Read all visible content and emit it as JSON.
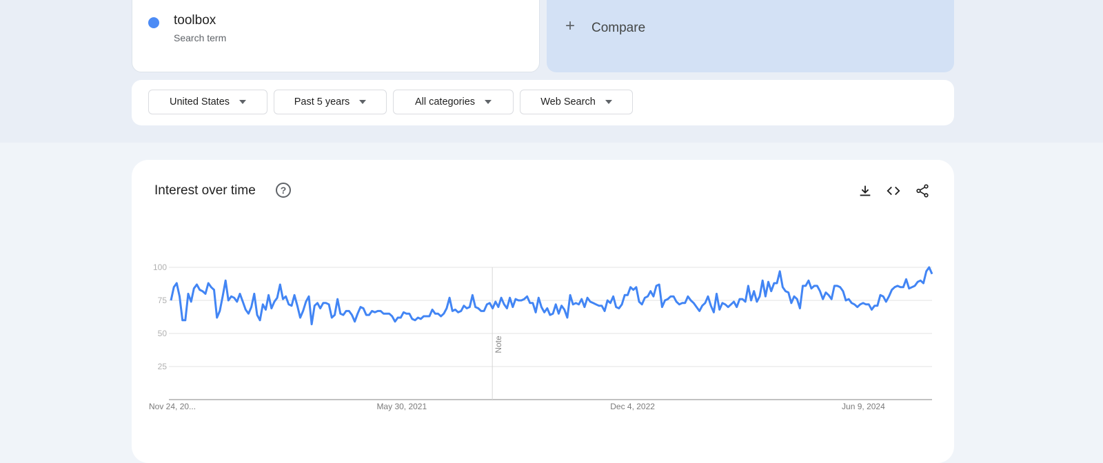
{
  "search_term": {
    "name": "toolbox",
    "type": "Search term",
    "color": "#4c8bf5"
  },
  "compare": {
    "icon": "plus-icon",
    "label": "Compare"
  },
  "filters": [
    {
      "label": "United States"
    },
    {
      "label": "Past 5 years"
    },
    {
      "label": "All categories"
    },
    {
      "label": "Web Search"
    }
  ],
  "interest": {
    "title": "Interest over time",
    "icons": [
      "help-icon",
      "download-icon",
      "embed-icon",
      "share-icon"
    ]
  },
  "chart_data": {
    "type": "line",
    "title": "",
    "xlabel": "",
    "ylabel": "",
    "ylim": [
      0,
      100
    ],
    "yticks": [
      25,
      50,
      75,
      100
    ],
    "grid": true,
    "line_color": "#4285f4",
    "x_start": "2019-11-24",
    "x_interval": "week",
    "xticks": [
      {
        "label": "Nov 24, 20...",
        "date": "2019-11-24"
      },
      {
        "label": "May 30, 2021",
        "date": "2021-05-30"
      },
      {
        "label": "Dec 4, 2022",
        "date": "2022-12-04"
      },
      {
        "label": "Jun 9, 2024",
        "date": "2024-06-09"
      }
    ],
    "annotations": [
      {
        "label": "Note",
        "date": "2022-01-02"
      }
    ],
    "series": [
      {
        "values": [
          75,
          85,
          88,
          78,
          60,
          60,
          80,
          74,
          84,
          87,
          83,
          82,
          80,
          88,
          85,
          83,
          62,
          67,
          78,
          90,
          75,
          78,
          77,
          74,
          80,
          74,
          68,
          65,
          70,
          80,
          64,
          60,
          72,
          68,
          79,
          69,
          74,
          77,
          87,
          76,
          78,
          72,
          71,
          79,
          71,
          62,
          67,
          74,
          78,
          57,
          71,
          73,
          69,
          73,
          73,
          72,
          62,
          64,
          76,
          65,
          64,
          67,
          67,
          64,
          59,
          65,
          70,
          69,
          64,
          64,
          67,
          66,
          67,
          67,
          65,
          65,
          65,
          63,
          59,
          62,
          62,
          66,
          65,
          65,
          61,
          60,
          62,
          61,
          63,
          63,
          63,
          68,
          65,
          65,
          63,
          65,
          69,
          77,
          67,
          68,
          66,
          67,
          71,
          69,
          70,
          79,
          70,
          69,
          67,
          67,
          72,
          73,
          69,
          74,
          70,
          77,
          72,
          69,
          77,
          70,
          76,
          75,
          75,
          76,
          78,
          73,
          73,
          66,
          77,
          70,
          66,
          69,
          64,
          65,
          72,
          65,
          71,
          68,
          62,
          79,
          72,
          73,
          72,
          76,
          70,
          77,
          74,
          73,
          72,
          71,
          71,
          67,
          75,
          73,
          78,
          70,
          69,
          72,
          79,
          79,
          85,
          83,
          85,
          74,
          72,
          77,
          78,
          82,
          78,
          86,
          87,
          70,
          75,
          76,
          78,
          78,
          74,
          72,
          73,
          73,
          78,
          75,
          73,
          70,
          67,
          71,
          73,
          78,
          71,
          66,
          80,
          68,
          73,
          72,
          70,
          72,
          74,
          70,
          76,
          76,
          74,
          86,
          75,
          82,
          74,
          78,
          90,
          78,
          89,
          82,
          88,
          88,
          97,
          85,
          82,
          81,
          73,
          78,
          76,
          69,
          86,
          86,
          90,
          84,
          86,
          86,
          82,
          76,
          81,
          79,
          76,
          86,
          86,
          85,
          82,
          75,
          76,
          73,
          72,
          70,
          72,
          73,
          72,
          72,
          68,
          71,
          71,
          79,
          78,
          74,
          78,
          83,
          85,
          86,
          85,
          85,
          91,
          84,
          85,
          86,
          89,
          90,
          88,
          97,
          100,
          95
        ]
      }
    ]
  }
}
